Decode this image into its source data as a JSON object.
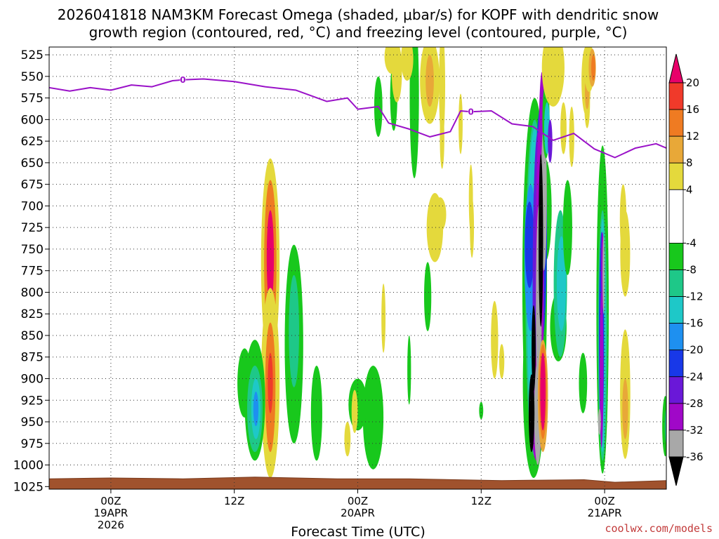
{
  "chart_data": {
    "type": "heatmap",
    "title_line1": "2026041818 NAM3KM Forecast Omega (shaded, μbar/s) for KOPF with dendritic snow",
    "title_line2": "growth region (contoured, red, °C) and freezing level (contoured, purple, °C)",
    "xlabel": "Forecast Time (UTC)",
    "credit": "coolwx.com/models",
    "x_range_hours": [
      -6,
      54
    ],
    "y_levels_hpa": [
      525,
      550,
      575,
      600,
      625,
      650,
      675,
      700,
      725,
      750,
      775,
      800,
      825,
      850,
      875,
      900,
      925,
      950,
      975,
      1000,
      1025
    ],
    "y_range_hpa": [
      516,
      1028
    ],
    "x_ticks": [
      {
        "hour": 0,
        "lines": [
          "00Z",
          "19APR",
          "2026"
        ]
      },
      {
        "hour": 12,
        "lines": [
          "12Z"
        ]
      },
      {
        "hour": 24,
        "lines": [
          "00Z",
          "20APR"
        ]
      },
      {
        "hour": 36,
        "lines": [
          "12Z"
        ]
      },
      {
        "hour": 48,
        "lines": [
          "00Z",
          "21APR"
        ]
      }
    ],
    "colorbar": {
      "labels": [
        "20",
        "16",
        "12",
        "8",
        "4",
        "-4",
        "-8",
        "-12",
        "-16",
        "-20",
        "-24",
        "-28",
        "-32",
        "-36"
      ],
      "bands": [
        {
          "from": 20,
          "to": 24,
          "color": "#e8006a"
        },
        {
          "from": 16,
          "to": 20,
          "color": "#f03a2a"
        },
        {
          "from": 12,
          "to": 16,
          "color": "#ef7b22"
        },
        {
          "from": 8,
          "to": 12,
          "color": "#e8a838"
        },
        {
          "from": 4,
          "to": 8,
          "color": "#e4d93c"
        },
        {
          "from": -4,
          "to": 4,
          "color": "#ffffff"
        },
        {
          "from": -8,
          "to": -4,
          "color": "#18c81c"
        },
        {
          "from": -12,
          "to": -8,
          "color": "#1ec888"
        },
        {
          "from": -16,
          "to": -12,
          "color": "#1ec8c8"
        },
        {
          "from": -20,
          "to": -16,
          "color": "#1e90f0"
        },
        {
          "from": -24,
          "to": -20,
          "color": "#1838e8"
        },
        {
          "from": -28,
          "to": -24,
          "color": "#6a18d8"
        },
        {
          "from": -32,
          "to": -28,
          "color": "#a008c8"
        },
        {
          "from": -36,
          "to": -32,
          "color": "#a8a8a8"
        },
        {
          "from": -40,
          "to": -36,
          "color": "#000000"
        }
      ]
    },
    "freezing_level": {
      "label": "0",
      "color": "#9a12c8",
      "label_hours": [
        7.0,
        35.0
      ],
      "points": [
        [
          -6,
          563
        ],
        [
          -4,
          567
        ],
        [
          -2,
          563
        ],
        [
          0,
          566
        ],
        [
          2,
          560
        ],
        [
          4,
          562
        ],
        [
          6,
          555
        ],
        [
          7.0,
          554
        ],
        [
          9,
          553
        ],
        [
          12,
          556
        ],
        [
          15,
          562
        ],
        [
          18,
          566
        ],
        [
          21,
          579
        ],
        [
          23,
          575
        ],
        [
          24,
          588
        ],
        [
          26,
          585
        ],
        [
          27,
          604
        ],
        [
          29,
          611
        ],
        [
          31,
          620
        ],
        [
          33,
          614
        ],
        [
          34,
          590
        ],
        [
          35,
          591
        ],
        [
          37,
          590
        ],
        [
          39,
          605
        ],
        [
          41,
          608
        ],
        [
          43,
          624
        ],
        [
          45,
          616
        ],
        [
          47,
          634
        ],
        [
          49,
          644
        ],
        [
          51,
          633
        ],
        [
          53,
          628
        ],
        [
          54,
          633
        ]
      ]
    },
    "ground": {
      "color": "#a0522d",
      "points": [
        [
          -6,
          1016
        ],
        [
          0,
          1015
        ],
        [
          7,
          1016
        ],
        [
          14,
          1014
        ],
        [
          22,
          1016
        ],
        [
          29,
          1016
        ],
        [
          38,
          1018
        ],
        [
          46,
          1017
        ],
        [
          49,
          1020
        ],
        [
          54,
          1018
        ]
      ]
    },
    "omega_cells": [
      {
        "t": 22.0,
        "p": 1026,
        "ht": 1.2,
        "hp": 0,
        "v": 0
      },
      {
        "t": 15.5,
        "p": 765,
        "ht": 0.9,
        "hp": 120,
        "v": 6
      },
      {
        "t": 15.5,
        "p": 765,
        "ht": 0.6,
        "hp": 95,
        "v": 12
      },
      {
        "t": 15.5,
        "p": 760,
        "ht": 0.35,
        "hp": 55,
        "v": 20
      },
      {
        "t": 15.5,
        "p": 905,
        "ht": 0.9,
        "hp": 110,
        "v": 6
      },
      {
        "t": 15.5,
        "p": 910,
        "ht": 0.5,
        "hp": 75,
        "v": 12
      },
      {
        "t": 15.5,
        "p": 905,
        "ht": 0.25,
        "hp": 35,
        "v": 16
      },
      {
        "t": 14.0,
        "p": 925,
        "ht": 1.0,
        "hp": 70,
        "v": -6
      },
      {
        "t": 13.0,
        "p": 905,
        "ht": 0.7,
        "hp": 40,
        "v": -6
      },
      {
        "t": 14.0,
        "p": 935,
        "ht": 0.75,
        "hp": 50,
        "v": -10
      },
      {
        "t": 14.1,
        "p": 935,
        "ht": 0.45,
        "hp": 35,
        "v": -14
      },
      {
        "t": 14.1,
        "p": 935,
        "ht": 0.25,
        "hp": 20,
        "v": -18
      },
      {
        "t": 17.8,
        "p": 860,
        "ht": 0.9,
        "hp": 115,
        "v": -6
      },
      {
        "t": 17.8,
        "p": 845,
        "ht": 0.5,
        "hp": 65,
        "v": -10
      },
      {
        "t": 20.0,
        "p": 940,
        "ht": 0.55,
        "hp": 55,
        "v": -6
      },
      {
        "t": 25.5,
        "p": 945,
        "ht": 1.0,
        "hp": 60,
        "v": -6
      },
      {
        "t": 24.0,
        "p": 930,
        "ht": 0.9,
        "hp": 30,
        "v": -6
      },
      {
        "t": 23.7,
        "p": 938,
        "ht": 0.3,
        "hp": 25,
        "v": 6
      },
      {
        "t": 23.0,
        "p": 970,
        "ht": 0.3,
        "hp": 20,
        "v": 6
      },
      {
        "t": 26.5,
        "p": 830,
        "ht": 0.2,
        "hp": 40,
        "v": 6
      },
      {
        "t": 26.0,
        "p": 585,
        "ht": 0.4,
        "hp": 35,
        "v": -6
      },
      {
        "t": 27.5,
        "p": 573,
        "ht": 0.35,
        "hp": 40,
        "v": -6
      },
      {
        "t": 27.8,
        "p": 545,
        "ht": 0.5,
        "hp": 35,
        "v": 4
      },
      {
        "t": 27.3,
        "p": 527,
        "ht": 0.7,
        "hp": 20,
        "v": 4
      },
      {
        "t": 29.5,
        "p": 573,
        "ht": 0.45,
        "hp": 95,
        "v": -6
      },
      {
        "t": 28.8,
        "p": 530,
        "ht": 0.6,
        "hp": 25,
        "v": 4
      },
      {
        "t": 31.0,
        "p": 555,
        "ht": 0.95,
        "hp": 50,
        "v": 4
      },
      {
        "t": 31.0,
        "p": 555,
        "ht": 0.4,
        "hp": 30,
        "v": 8
      },
      {
        "t": 32.2,
        "p": 560,
        "ht": 0.3,
        "hp": 65,
        "v": 4
      },
      {
        "t": 32.2,
        "p": 622,
        "ht": 0.22,
        "hp": 35,
        "v": 4
      },
      {
        "t": 30.8,
        "p": 805,
        "ht": 0.35,
        "hp": 40,
        "v": -6
      },
      {
        "t": 29.0,
        "p": 890,
        "ht": 0.18,
        "hp": 40,
        "v": -6
      },
      {
        "t": 31.5,
        "p": 725,
        "ht": 0.8,
        "hp": 40,
        "v": 4
      },
      {
        "t": 32.0,
        "p": 710,
        "ht": 0.6,
        "hp": 20,
        "v": 4
      },
      {
        "t": 34.0,
        "p": 605,
        "ht": 0.2,
        "hp": 35,
        "v": 4
      },
      {
        "t": 35.0,
        "p": 692,
        "ht": 0.2,
        "hp": 40,
        "v": 4
      },
      {
        "t": 35.1,
        "p": 725,
        "ht": 0.2,
        "hp": 35,
        "v": 4
      },
      {
        "t": 36.0,
        "p": 937,
        "ht": 0.2,
        "hp": 10,
        "v": -6
      },
      {
        "t": 37.3,
        "p": 855,
        "ht": 0.35,
        "hp": 45,
        "v": 4
      },
      {
        "t": 38.0,
        "p": 880,
        "ht": 0.25,
        "hp": 20,
        "v": 4
      },
      {
        "t": 41.2,
        "p": 790,
        "ht": 1.2,
        "hp": 215,
        "v": -6
      },
      {
        "t": 42.2,
        "p": 705,
        "ht": 0.65,
        "hp": 60,
        "v": -6
      },
      {
        "t": 41.1,
        "p": 905,
        "ht": 1.05,
        "hp": 110,
        "v": -6
      },
      {
        "t": 41.2,
        "p": 795,
        "ht": 0.9,
        "hp": 195,
        "v": -10
      },
      {
        "t": 41.2,
        "p": 795,
        "ht": 0.75,
        "hp": 185,
        "v": -14
      },
      {
        "t": 40.8,
        "p": 760,
        "ht": 0.6,
        "hp": 85,
        "v": -18
      },
      {
        "t": 40.7,
        "p": 745,
        "ht": 0.45,
        "hp": 50,
        "v": -22
      },
      {
        "t": 41.8,
        "p": 725,
        "ht": 0.6,
        "hp": 140,
        "v": -22
      },
      {
        "t": 41.5,
        "p": 800,
        "ht": 0.5,
        "hp": 185,
        "v": -26
      },
      {
        "t": 41.7,
        "p": 775,
        "ht": 0.4,
        "hp": 175,
        "v": -30
      },
      {
        "t": 41.4,
        "p": 935,
        "ht": 0.6,
        "hp": 60,
        "v": -30
      },
      {
        "t": 41.9,
        "p": 670,
        "ht": 0.35,
        "hp": 125,
        "v": -30
      },
      {
        "t": 41.6,
        "p": 820,
        "ht": 0.28,
        "hp": 120,
        "v": -34
      },
      {
        "t": 42.1,
        "p": 690,
        "ht": 0.28,
        "hp": 85,
        "v": -34
      },
      {
        "t": 41.5,
        "p": 940,
        "ht": 0.35,
        "hp": 60,
        "v": -34
      },
      {
        "t": 41.8,
        "p": 740,
        "ht": 0.22,
        "hp": 100,
        "v": -38
      },
      {
        "t": 40.9,
        "p": 940,
        "ht": 0.28,
        "hp": 45,
        "v": -38
      },
      {
        "t": 41.1,
        "p": 865,
        "ht": 0.2,
        "hp": 50,
        "v": -38
      },
      {
        "t": 42.3,
        "p": 600,
        "ht": 0.35,
        "hp": 45,
        "v": -6
      },
      {
        "t": 42.4,
        "p": 610,
        "ht": 0.28,
        "hp": 30,
        "v": -14
      },
      {
        "t": 42.7,
        "p": 625,
        "ht": 0.22,
        "hp": 25,
        "v": -26
      },
      {
        "t": 42.0,
        "p": 920,
        "ht": 0.5,
        "hp": 65,
        "v": 8
      },
      {
        "t": 42.0,
        "p": 915,
        "ht": 0.38,
        "hp": 55,
        "v": 14
      },
      {
        "t": 42.0,
        "p": 915,
        "ht": 0.26,
        "hp": 45,
        "v": 22
      },
      {
        "t": 43.5,
        "p": 840,
        "ht": 0.8,
        "hp": 40,
        "v": -6
      },
      {
        "t": 43.7,
        "p": 790,
        "ht": 0.65,
        "hp": 85,
        "v": -10
      },
      {
        "t": 43.8,
        "p": 790,
        "ht": 0.45,
        "hp": 55,
        "v": -14
      },
      {
        "t": 44.4,
        "p": 725,
        "ht": 0.45,
        "hp": 55,
        "v": -6
      },
      {
        "t": 43.0,
        "p": 540,
        "ht": 1.1,
        "hp": 45,
        "v": 4
      },
      {
        "t": 44.0,
        "p": 610,
        "ht": 0.3,
        "hp": 30,
        "v": 4
      },
      {
        "t": 44.8,
        "p": 620,
        "ht": 0.25,
        "hp": 35,
        "v": 4
      },
      {
        "t": 46.2,
        "p": 555,
        "ht": 0.45,
        "hp": 40,
        "v": 4
      },
      {
        "t": 46.3,
        "p": 580,
        "ht": 0.28,
        "hp": 30,
        "v": 4
      },
      {
        "t": 46.3,
        "p": 568,
        "ht": 0.22,
        "hp": 20,
        "v": 8
      },
      {
        "t": 46.5,
        "p": 540,
        "ht": 0.5,
        "hp": 28,
        "v": 4
      },
      {
        "t": 46.8,
        "p": 540,
        "ht": 0.35,
        "hp": 22,
        "v": 8
      },
      {
        "t": 46.9,
        "p": 540,
        "ht": 0.2,
        "hp": 15,
        "v": 14
      },
      {
        "t": 45.9,
        "p": 905,
        "ht": 0.4,
        "hp": 35,
        "v": -6
      },
      {
        "t": 47.8,
        "p": 820,
        "ht": 0.6,
        "hp": 190,
        "v": -6
      },
      {
        "t": 47.8,
        "p": 850,
        "ht": 0.45,
        "hp": 145,
        "v": -10
      },
      {
        "t": 47.8,
        "p": 850,
        "ht": 0.32,
        "hp": 135,
        "v": -14
      },
      {
        "t": 47.7,
        "p": 850,
        "ht": 0.25,
        "hp": 120,
        "v": -22
      },
      {
        "t": 47.7,
        "p": 890,
        "ht": 0.18,
        "hp": 90,
        "v": -30
      },
      {
        "t": 47.5,
        "p": 950,
        "ht": 0.14,
        "hp": 15,
        "v": -34
      },
      {
        "t": 47.8,
        "p": 775,
        "ht": 0.14,
        "hp": 45,
        "v": -30
      },
      {
        "t": 47.9,
        "p": 780,
        "ht": 0.08,
        "hp": 45,
        "v": -34
      },
      {
        "t": 50.0,
        "p": 918,
        "ht": 0.5,
        "hp": 75,
        "v": 4
      },
      {
        "t": 50.0,
        "p": 935,
        "ht": 0.28,
        "hp": 35,
        "v": 8
      },
      {
        "t": 50.0,
        "p": 755,
        "ht": 0.48,
        "hp": 50,
        "v": 4
      },
      {
        "t": 49.8,
        "p": 715,
        "ht": 0.32,
        "hp": 40,
        "v": 4
      },
      {
        "t": 53.9,
        "p": 955,
        "ht": 0.3,
        "hp": 35,
        "v": -6
      },
      {
        "t": 54.0,
        "p": 955,
        "ht": 0.15,
        "hp": 20,
        "v": -10
      }
    ]
  }
}
